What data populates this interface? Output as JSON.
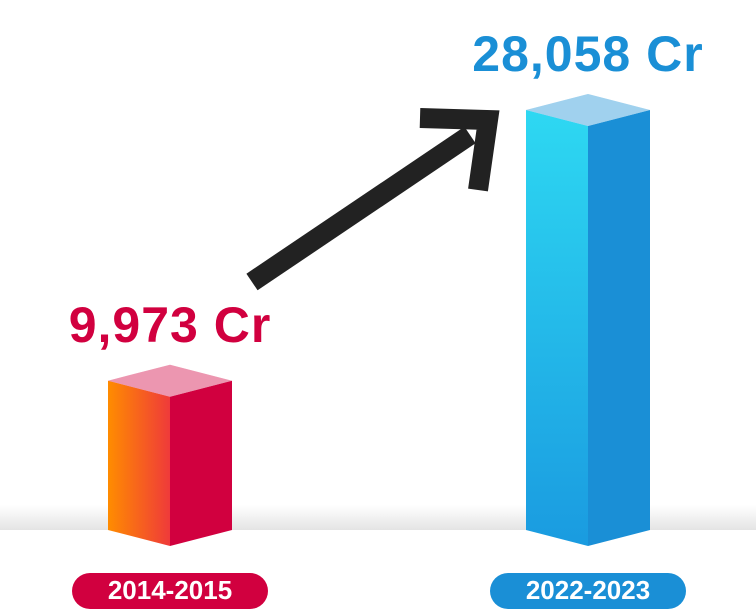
{
  "chart_data": {
    "type": "bar3d",
    "categories": [
      "2014-2015",
      "2022-2023"
    ],
    "values": [
      9973,
      28058
    ],
    "value_labels": [
      "9,973 Cr",
      "28,058 Cr"
    ],
    "colors": [
      "#d1003f",
      "#1a8fd6"
    ]
  }
}
